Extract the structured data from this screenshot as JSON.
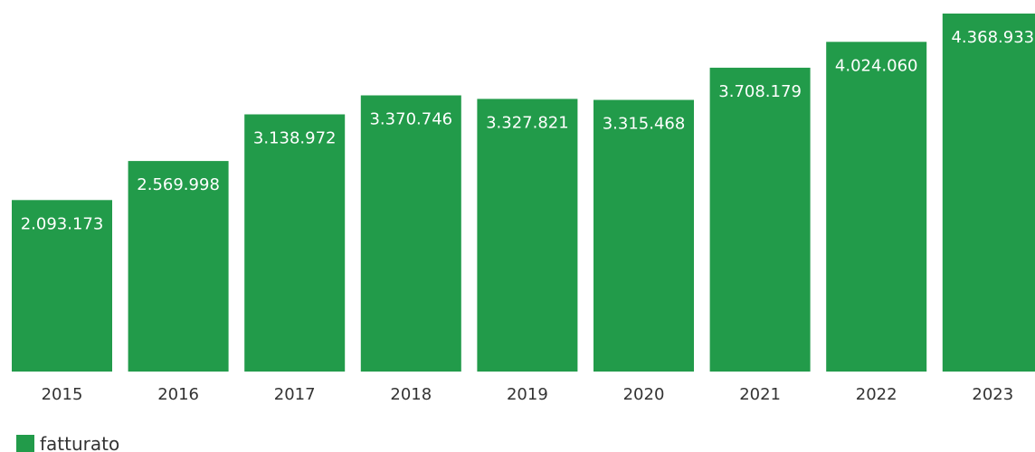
{
  "chart_data": {
    "type": "bar",
    "categories": [
      "2015",
      "2016",
      "2017",
      "2018",
      "2019",
      "2020",
      "2021",
      "2022",
      "2023"
    ],
    "series": [
      {
        "name": "fatturato",
        "values": [
          2093173,
          2569998,
          3138972,
          3370746,
          3327821,
          3315468,
          3708179,
          4024060,
          4368933
        ],
        "labels": [
          "2.093.173",
          "2.569.998",
          "3.138.972",
          "3.370.746",
          "3.327.821",
          "3.315.468",
          "3.708.179",
          "4.024.060",
          "4.368.933"
        ],
        "color": "#229b4a"
      }
    ],
    "ylim": [
      0,
      4368933
    ],
    "grid": false,
    "legend_position": "bottom-left"
  },
  "legend": {
    "label": "fatturato"
  }
}
